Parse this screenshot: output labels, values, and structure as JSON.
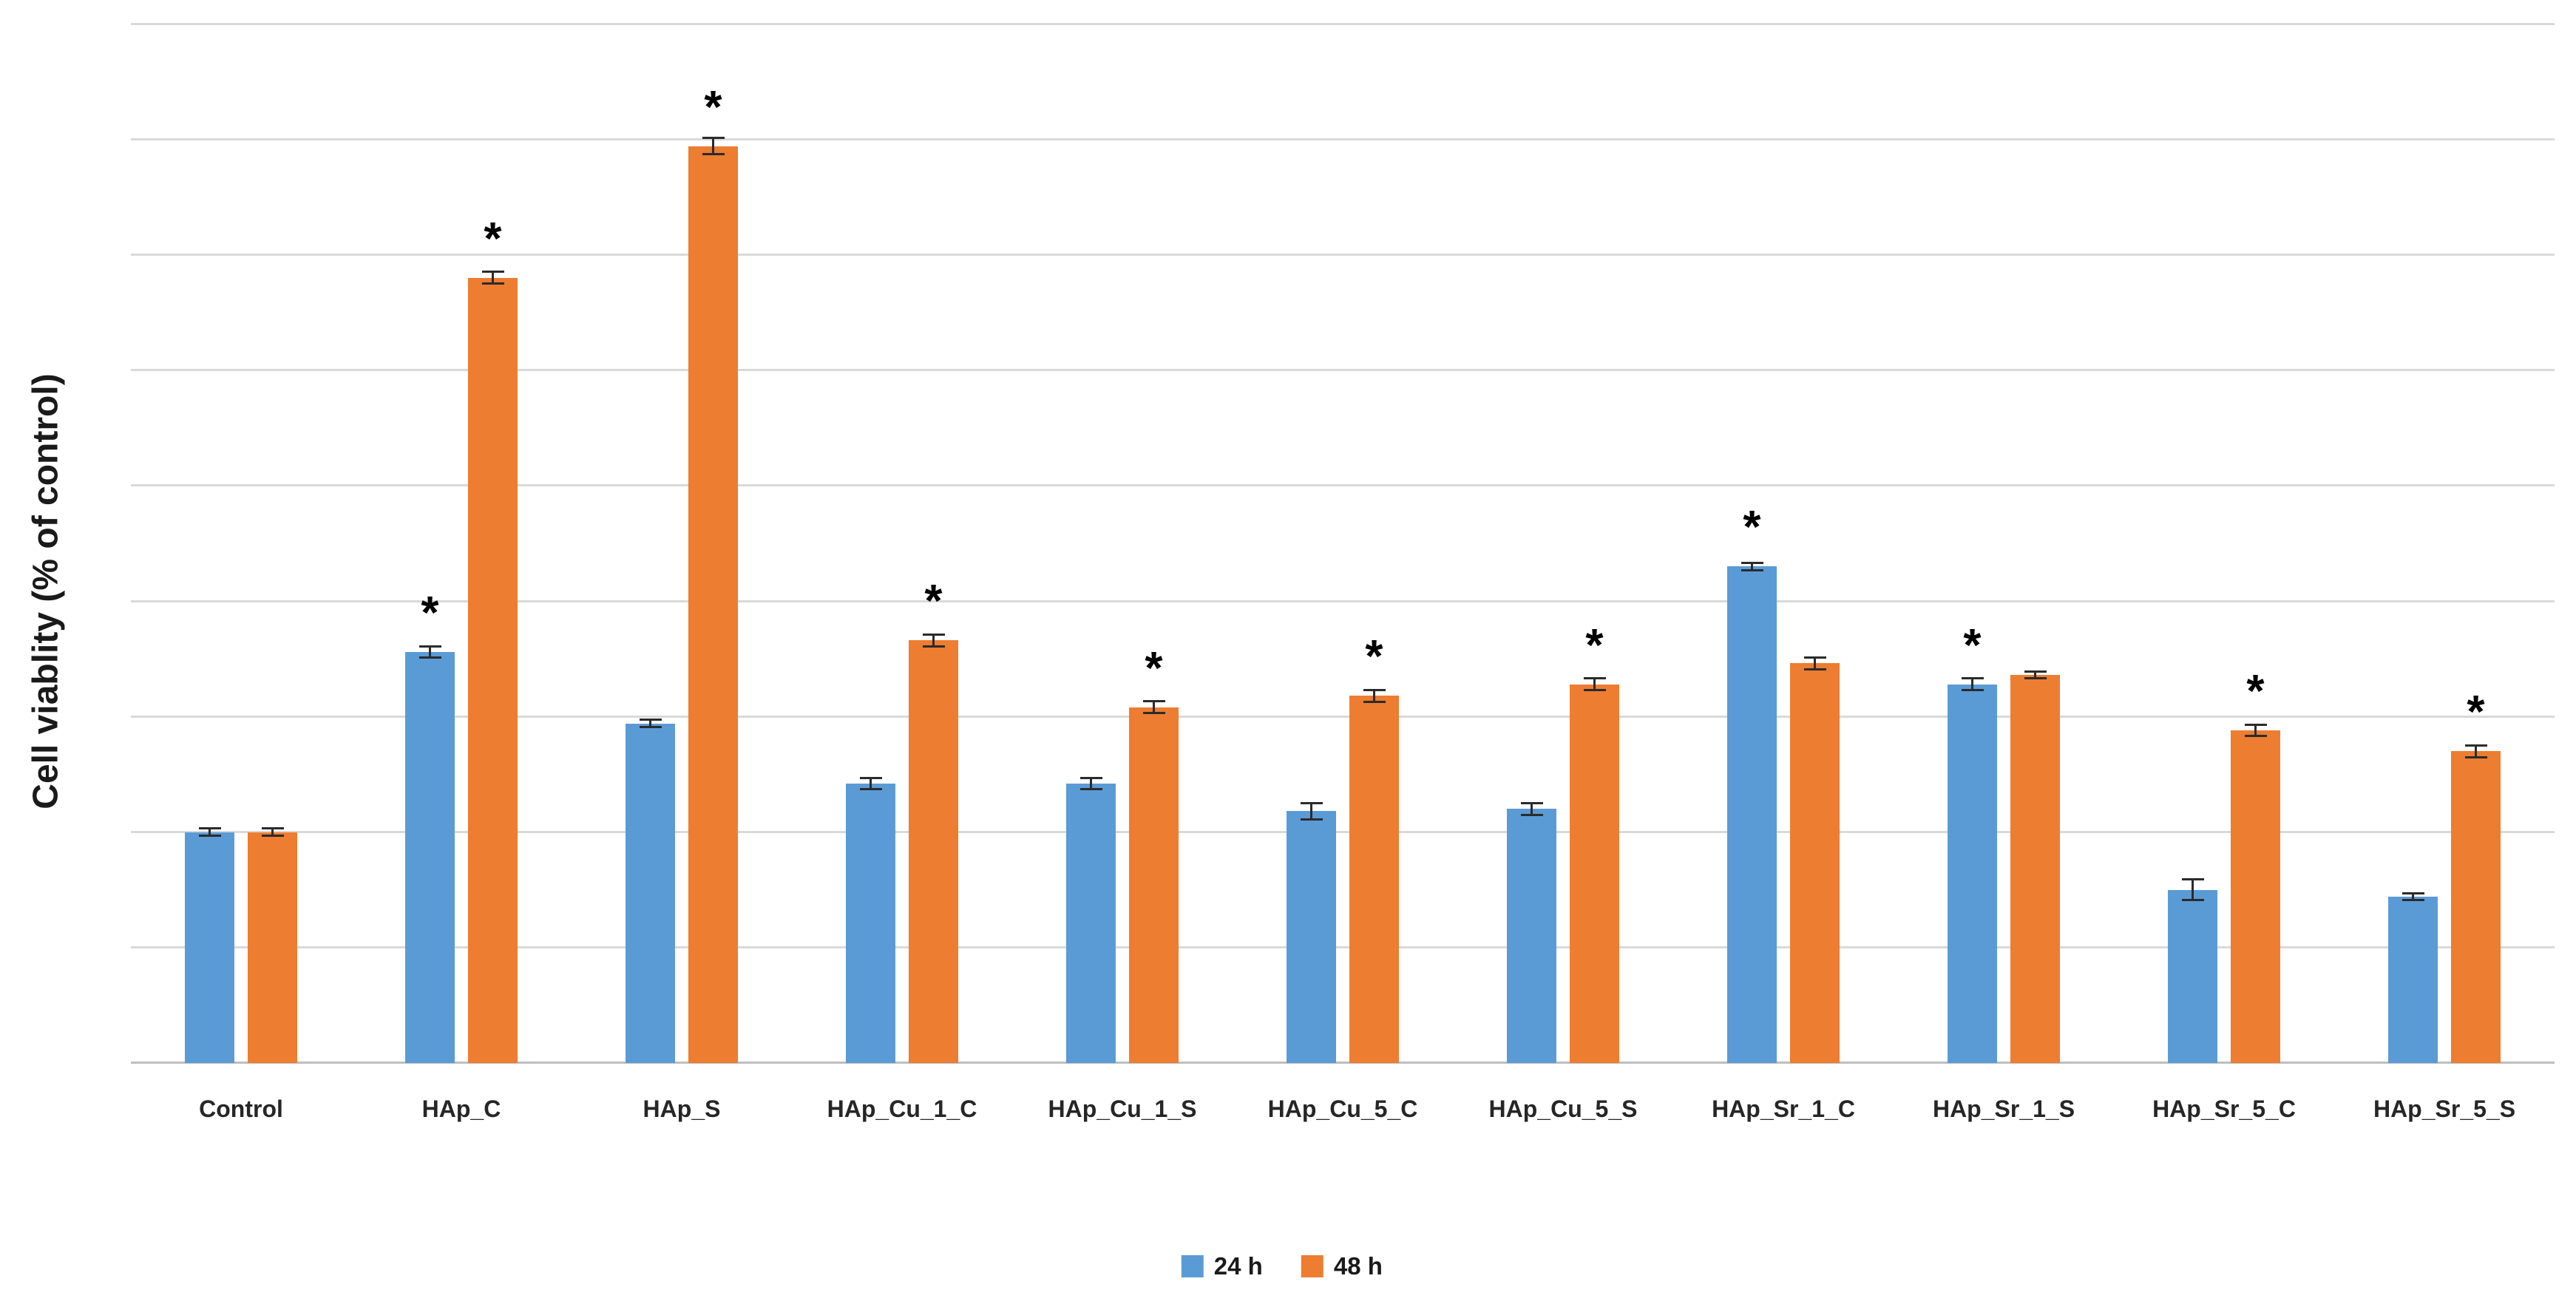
{
  "chart_data": {
    "type": "bar",
    "title": "",
    "ylabel": "Cell viablity (% of control)",
    "xlabel": "",
    "ylim": [
      0,
      450
    ],
    "gridline_step": 50,
    "grid": true,
    "y_tick_labels_visible": false,
    "legend_position": "bottom-center",
    "significance_marker": "*",
    "colors": {
      "series_24h": "#5B9BD5",
      "series_48h": "#ED7D31",
      "gridline": "#d9d9d9",
      "axis_line": "#bfbfbf",
      "error_bar": "#2b2b2b"
    },
    "categories": [
      "Control",
      "HAp_C",
      "HAp_S",
      "HAp_Cu_1_C",
      "HAp_Cu_1_S",
      "HAp_Cu_5_C",
      "HAp_Cu_5_S",
      "HAp_Sr_1_C",
      "HAp_Sr_1_S",
      "HAp_Sr_5_C",
      "HAp_Sr_5_S"
    ],
    "series": [
      {
        "name": "24 h",
        "color": "#5B9BD5",
        "values": [
          100,
          178,
          147,
          121,
          121,
          109,
          110,
          215,
          164,
          75,
          72
        ],
        "errors": [
          2,
          3,
          2,
          3,
          3,
          4,
          3,
          2,
          3,
          5,
          2
        ],
        "significant": [
          false,
          true,
          false,
          false,
          false,
          false,
          false,
          true,
          true,
          false,
          false
        ]
      },
      {
        "name": "48 h",
        "color": "#ED7D31",
        "values": [
          100,
          340,
          397,
          183,
          154,
          159,
          164,
          173,
          168,
          144,
          135
        ],
        "errors": [
          2,
          3,
          4,
          3,
          3,
          3,
          3,
          3,
          2,
          3,
          3
        ],
        "significant": [
          false,
          true,
          true,
          true,
          true,
          true,
          true,
          false,
          false,
          true,
          true
        ]
      }
    ]
  }
}
